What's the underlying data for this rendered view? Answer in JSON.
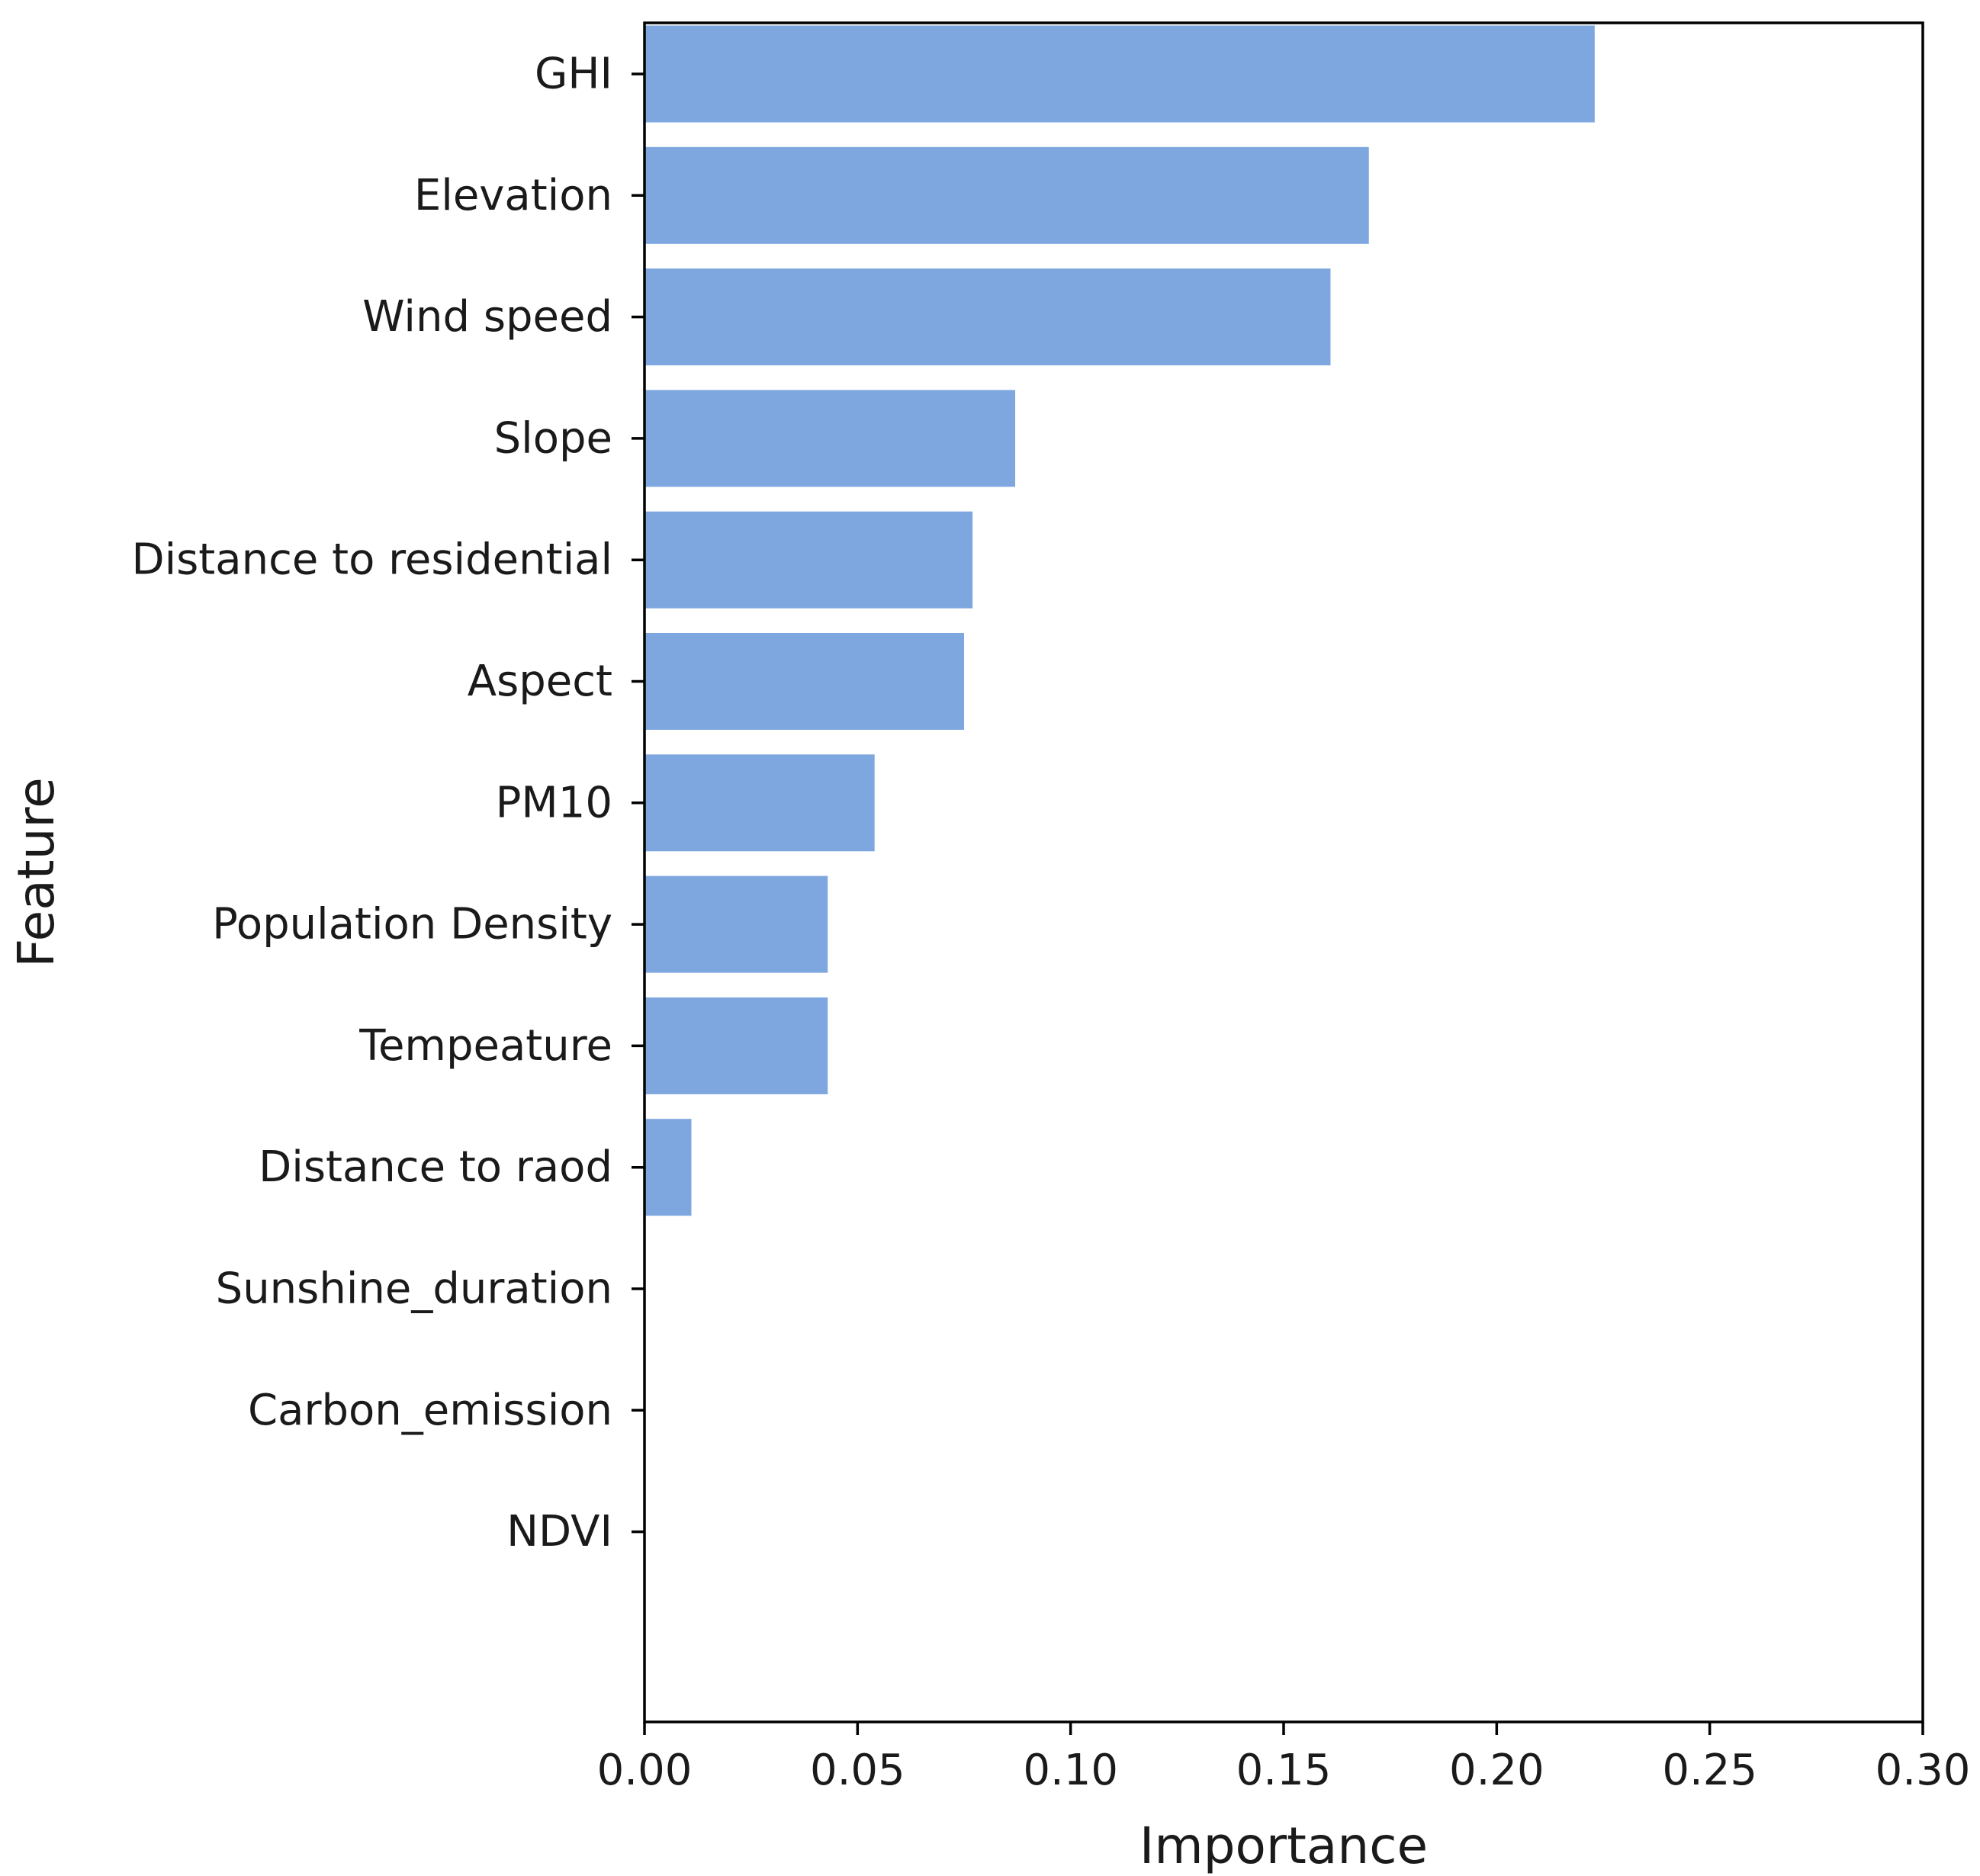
{
  "chart_data": {
    "type": "bar",
    "orientation": "horizontal",
    "title": "",
    "xlabel": "Importance",
    "ylabel": "Feature",
    "xlim": [
      0,
      0.3
    ],
    "xticks": [
      0,
      0.05,
      0.1,
      0.15,
      0.2,
      0.25,
      0.3
    ],
    "xtick_labels": [
      "0.00",
      "0.05",
      "0.10",
      "0.15",
      "0.20",
      "0.25",
      "0.30"
    ],
    "grid": false,
    "legend": "none",
    "bar_color": "#7fa7df",
    "categories": [
      "GHI",
      "Elevation",
      "Wind speed",
      "Slope",
      "Distance to residential",
      "Aspect",
      "PM10",
      "Population Density",
      "Tempeature",
      "Distance to raod",
      "Sunshine_duration",
      "Carbon_emission",
      "NDVI"
    ],
    "values": [
      0.223,
      0.17,
      0.161,
      0.087,
      0.077,
      0.075,
      0.054,
      0.043,
      0.043,
      0.011,
      0,
      0,
      0
    ]
  }
}
